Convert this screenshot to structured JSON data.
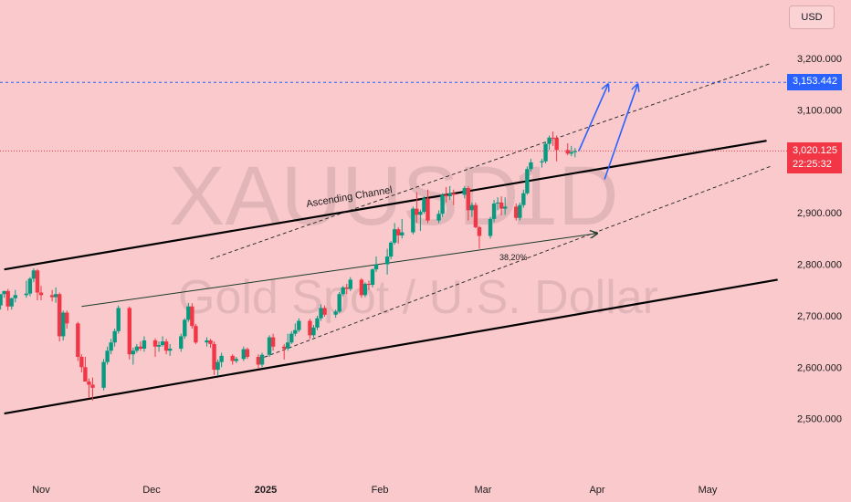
{
  "chart_data": {
    "type": "candlestick",
    "symbol": "XAUUSD",
    "interval": "1D",
    "description": "Gold Spot / U.S. Dollar",
    "currency": "USD",
    "y_axis": {
      "ticks": [
        2500,
        2600,
        2700,
        2800,
        2900,
        3000,
        3100,
        3200
      ],
      "tick_labels": [
        "2,500.000",
        "2,600.000",
        "2,700.000",
        "2,800.000",
        "2,900.000",
        "3,100.000",
        "3,200.000"
      ],
      "range": [
        2480,
        3250
      ]
    },
    "x_axis": {
      "tick_labels": [
        "Nov",
        "Dec",
        "2025",
        "Feb",
        "Mar",
        "Apr",
        "May"
      ],
      "tick_dates": [
        "2024-11-01",
        "2024-12-01",
        "2025-01-01",
        "2025-02-01",
        "2025-03-01",
        "2025-04-01",
        "2025-05-01"
      ],
      "range": [
        "2024-10-20",
        "2025-05-26"
      ]
    },
    "last_price": "3,020.125",
    "countdown": "22:25:32",
    "target_price": "3,153.442",
    "annotations": {
      "channel_label": "Ascending Channel",
      "fib_label": "38,20%"
    },
    "candles": [
      [
        "2024-10-21",
        2720,
        2740,
        2712,
        2742
      ],
      [
        "2024-10-22",
        2742,
        2748,
        2735,
        2748
      ],
      [
        "2024-10-23",
        2748,
        2752,
        2710,
        2718
      ],
      [
        "2024-10-24",
        2718,
        2735,
        2712,
        2734
      ],
      [
        "2024-10-25",
        2734,
        2750,
        2726,
        2740
      ],
      [
        "2024-10-28",
        2740,
        2768,
        2735,
        2743
      ],
      [
        "2024-10-29",
        2743,
        2775,
        2738,
        2772
      ],
      [
        "2024-10-30",
        2772,
        2792,
        2765,
        2788
      ],
      [
        "2024-10-31",
        2788,
        2791,
        2730,
        2745
      ],
      [
        "2024-11-01",
        2745,
        2758,
        2730,
        2740
      ],
      [
        "2024-11-04",
        2740,
        2750,
        2728,
        2736
      ],
      [
        "2024-11-05",
        2736,
        2755,
        2725,
        2742
      ],
      [
        "2024-11-06",
        2742,
        2745,
        2650,
        2660
      ],
      [
        "2024-11-07",
        2660,
        2710,
        2652,
        2706
      ],
      [
        "2024-11-08",
        2706,
        2710,
        2675,
        2685
      ],
      [
        "2024-11-11",
        2685,
        2688,
        2612,
        2620
      ],
      [
        "2024-11-12",
        2620,
        2625,
        2590,
        2600
      ],
      [
        "2024-11-13",
        2600,
        2620,
        2575,
        2572
      ],
      [
        "2024-11-14",
        2572,
        2578,
        2540,
        2566
      ],
      [
        "2024-11-15",
        2566,
        2580,
        2535,
        2560
      ],
      [
        "2024-11-18",
        2560,
        2616,
        2555,
        2610
      ],
      [
        "2024-11-19",
        2610,
        2640,
        2605,
        2632
      ],
      [
        "2024-11-20",
        2632,
        2655,
        2625,
        2648
      ],
      [
        "2024-11-21",
        2648,
        2675,
        2640,
        2670
      ],
      [
        "2024-11-22",
        2670,
        2720,
        2665,
        2715
      ],
      [
        "2024-11-25",
        2715,
        2718,
        2615,
        2625
      ],
      [
        "2024-11-26",
        2625,
        2638,
        2605,
        2632
      ],
      [
        "2024-11-27",
        2632,
        2645,
        2628,
        2640
      ],
      [
        "2024-11-28",
        2640,
        2650,
        2632,
        2636
      ],
      [
        "2024-11-29",
        2636,
        2660,
        2630,
        2652
      ],
      [
        "2024-12-02",
        2652,
        2656,
        2620,
        2640
      ],
      [
        "2024-12-03",
        2640,
        2650,
        2630,
        2643
      ],
      [
        "2024-12-04",
        2643,
        2660,
        2640,
        2650
      ],
      [
        "2024-12-05",
        2650,
        2655,
        2625,
        2632
      ],
      [
        "2024-12-06",
        2632,
        2645,
        2622,
        2636
      ],
      [
        "2024-12-09",
        2636,
        2665,
        2630,
        2660
      ],
      [
        "2024-12-10",
        2660,
        2695,
        2655,
        2692
      ],
      [
        "2024-12-11",
        2692,
        2725,
        2688,
        2718
      ],
      [
        "2024-12-12",
        2718,
        2724,
        2675,
        2680
      ],
      [
        "2024-12-13",
        2680,
        2684,
        2645,
        2648
      ],
      [
        "2024-12-16",
        2648,
        2658,
        2640,
        2652
      ],
      [
        "2024-12-17",
        2652,
        2655,
        2638,
        2645
      ],
      [
        "2024-12-18",
        2645,
        2650,
        2585,
        2595
      ],
      [
        "2024-12-19",
        2595,
        2615,
        2583,
        2610
      ],
      [
        "2024-12-20",
        2610,
        2628,
        2600,
        2622
      ],
      [
        "2024-12-23",
        2622,
        2625,
        2605,
        2612
      ],
      [
        "2024-12-24",
        2612,
        2620,
        2608,
        2616
      ],
      [
        "2024-12-26",
        2616,
        2640,
        2612,
        2635
      ],
      [
        "2024-12-27",
        2635,
        2638,
        2616,
        2620
      ],
      [
        "2024-12-30",
        2620,
        2625,
        2598,
        2605
      ],
      [
        "2024-12-31",
        2605,
        2628,
        2600,
        2624
      ],
      [
        "2025-01-02",
        2624,
        2662,
        2620,
        2658
      ],
      [
        "2025-01-03",
        2658,
        2665,
        2632,
        2640
      ],
      [
        "2025-01-06",
        2640,
        2645,
        2615,
        2636
      ],
      [
        "2025-01-07",
        2636,
        2665,
        2632,
        2648
      ],
      [
        "2025-01-08",
        2648,
        2670,
        2645,
        2665
      ],
      [
        "2025-01-09",
        2665,
        2685,
        2660,
        2672
      ],
      [
        "2025-01-10",
        2672,
        2695,
        2668,
        2690
      ],
      [
        "2025-01-13",
        2690,
        2694,
        2655,
        2662
      ],
      [
        "2025-01-14",
        2662,
        2682,
        2658,
        2677
      ],
      [
        "2025-01-15",
        2677,
        2700,
        2672,
        2695
      ],
      [
        "2025-01-16",
        2695,
        2722,
        2690,
        2715
      ],
      [
        "2025-01-17",
        2715,
        2720,
        2698,
        2702
      ],
      [
        "2025-01-20",
        2702,
        2712,
        2696,
        2708
      ],
      [
        "2025-01-21",
        2708,
        2746,
        2705,
        2742
      ],
      [
        "2025-01-22",
        2742,
        2758,
        2738,
        2755
      ],
      [
        "2025-01-23",
        2755,
        2762,
        2742,
        2752
      ],
      [
        "2025-01-24",
        2752,
        2775,
        2748,
        2770
      ],
      [
        "2025-01-27",
        2770,
        2773,
        2735,
        2740
      ],
      [
        "2025-01-28",
        2740,
        2765,
        2736,
        2762
      ],
      [
        "2025-01-29",
        2762,
        2768,
        2750,
        2760
      ],
      [
        "2025-01-30",
        2760,
        2792,
        2755,
        2790
      ],
      [
        "2025-01-31",
        2790,
        2815,
        2785,
        2800
      ],
      [
        "2025-02-03",
        2800,
        2830,
        2780,
        2815
      ],
      [
        "2025-02-04",
        2815,
        2845,
        2810,
        2842
      ],
      [
        "2025-02-05",
        2842,
        2880,
        2838,
        2868
      ],
      [
        "2025-02-06",
        2868,
        2872,
        2840,
        2856
      ],
      [
        "2025-02-07",
        2856,
        2888,
        2850,
        2862
      ],
      [
        "2025-02-10",
        2862,
        2912,
        2858,
        2908
      ],
      [
        "2025-02-11",
        2908,
        2940,
        2880,
        2896
      ],
      [
        "2025-02-12",
        2896,
        2906,
        2865,
        2902
      ],
      [
        "2025-02-13",
        2902,
        2932,
        2898,
        2928
      ],
      [
        "2025-02-14",
        2928,
        2945,
        2880,
        2885
      ],
      [
        "2025-02-17",
        2885,
        2905,
        2880,
        2898
      ],
      [
        "2025-02-18",
        2898,
        2938,
        2892,
        2935
      ],
      [
        "2025-02-19",
        2935,
        2950,
        2920,
        2932
      ],
      [
        "2025-02-20",
        2932,
        2952,
        2925,
        2938
      ],
      [
        "2025-02-21",
        2938,
        2945,
        2915,
        2935
      ],
      [
        "2025-02-24",
        2935,
        2952,
        2928,
        2948
      ],
      [
        "2025-02-25",
        2948,
        2952,
        2885,
        2905
      ],
      [
        "2025-02-26",
        2905,
        2920,
        2892,
        2915
      ],
      [
        "2025-02-27",
        2915,
        2920,
        2870,
        2872
      ],
      [
        "2025-02-28",
        2872,
        2875,
        2830,
        2855
      ],
      [
        "2025-03-03",
        2855,
        2892,
        2850,
        2888
      ],
      [
        "2025-03-04",
        2888,
        2925,
        2882,
        2918
      ],
      [
        "2025-03-05",
        2918,
        2930,
        2905,
        2920
      ],
      [
        "2025-03-06",
        2920,
        2932,
        2895,
        2908
      ],
      [
        "2025-03-07",
        2908,
        2930,
        2896,
        2912
      ],
      [
        "2025-03-10",
        2912,
        2918,
        2885,
        2890
      ],
      [
        "2025-03-11",
        2890,
        2920,
        2885,
        2915
      ],
      [
        "2025-03-12",
        2915,
        2945,
        2910,
        2938
      ],
      [
        "2025-03-13",
        2938,
        2990,
        2935,
        2985
      ],
      [
        "2025-03-14",
        2985,
        3005,
        2980,
        2998
      ],
      [
        "2025-03-17",
        2998,
        3005,
        2988,
        3000
      ],
      [
        "2025-03-18",
        3000,
        3038,
        2996,
        3034
      ],
      [
        "2025-03-19",
        3034,
        3050,
        3022,
        3046
      ],
      [
        "2025-03-20",
        3046,
        3058,
        3030,
        3045
      ],
      [
        "2025-03-21",
        3045,
        3050,
        3000,
        3022
      ],
      [
        "2025-03-24",
        3022,
        3035,
        3012,
        3015
      ],
      [
        "2025-03-25",
        3015,
        3030,
        3010,
        3018
      ],
      [
        "2025-03-26",
        3018,
        3026,
        3008,
        3020
      ]
    ],
    "drawings": [
      {
        "kind": "trendline",
        "points": [
          [
            "2024-10-22",
            2510
          ],
          [
            "2025-05-20",
            2770
          ]
        ]
      },
      {
        "kind": "trendline",
        "points": [
          [
            "2024-10-22",
            2790
          ],
          [
            "2025-05-17",
            3040
          ]
        ]
      },
      {
        "kind": "dashed",
        "points": [
          [
            "2024-12-17",
            2810
          ],
          [
            "2025-05-18",
            3190
          ]
        ]
      },
      {
        "kind": "dashed",
        "points": [
          [
            "2024-12-30",
            2615
          ],
          [
            "2025-05-18",
            2990
          ]
        ]
      },
      {
        "kind": "arrow",
        "points": [
          [
            "2024-11-12",
            2718
          ],
          [
            "2025-04-01",
            2860
          ]
        ]
      },
      {
        "kind": "arrow",
        "points": [
          [
            "2025-03-27",
            3020
          ],
          [
            "2025-04-04",
            3150
          ]
        ]
      },
      {
        "kind": "arrow",
        "points": [
          [
            "2025-04-03",
            2965
          ],
          [
            "2025-04-12",
            3150
          ]
        ]
      }
    ]
  }
}
